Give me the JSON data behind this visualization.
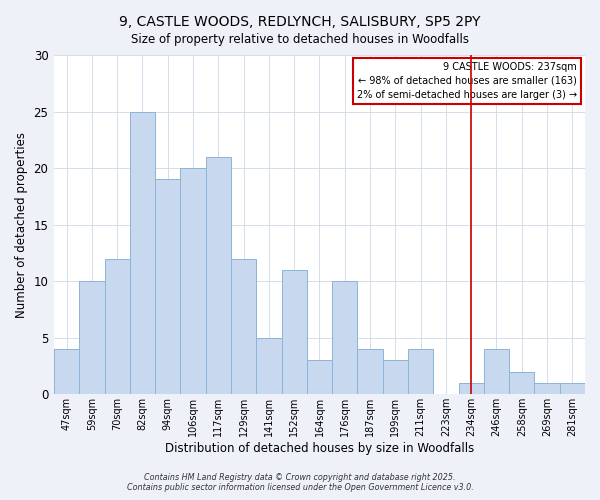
{
  "title": "9, CASTLE WOODS, REDLYNCH, SALISBURY, SP5 2PY",
  "subtitle": "Size of property relative to detached houses in Woodfalls",
  "xlabel": "Distribution of detached houses by size in Woodfalls",
  "ylabel": "Number of detached properties",
  "bar_labels": [
    "47sqm",
    "59sqm",
    "70sqm",
    "82sqm",
    "94sqm",
    "106sqm",
    "117sqm",
    "129sqm",
    "141sqm",
    "152sqm",
    "164sqm",
    "176sqm",
    "187sqm",
    "199sqm",
    "211sqm",
    "223sqm",
    "234sqm",
    "246sqm",
    "258sqm",
    "269sqm",
    "281sqm"
  ],
  "bar_values": [
    4,
    10,
    12,
    25,
    19,
    20,
    21,
    12,
    5,
    11,
    3,
    10,
    4,
    3,
    4,
    0,
    1,
    4,
    2,
    1,
    1
  ],
  "bar_color": "#c8d8ee",
  "bar_edge_color": "#8ab4d8",
  "vline_x": 16,
  "vline_color": "#cc0000",
  "legend_title": "9 CASTLE WOODS: 237sqm",
  "legend_line1": "← 98% of detached houses are smaller (163)",
  "legend_line2": "2% of semi-detached houses are larger (3) →",
  "ylim": [
    0,
    30
  ],
  "yticks": [
    0,
    5,
    10,
    15,
    20,
    25,
    30
  ],
  "footer1": "Contains HM Land Registry data © Crown copyright and database right 2025.",
  "footer2": "Contains public sector information licensed under the Open Government Licence v3.0.",
  "bg_color": "#eef2f8",
  "plot_bg_color": "#ffffff"
}
